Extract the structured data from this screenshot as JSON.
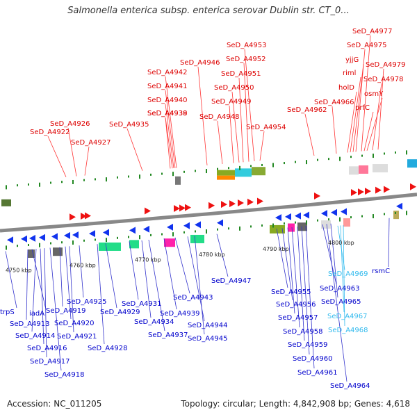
{
  "title": "Salmonella enterica subsp. enterica serovar Dublin str. CT_0...",
  "footer": {
    "accession": "Accession: NC_011205",
    "topology": "Topology: circular; Length: 4,842,908 bp; Genes: 4,618"
  },
  "colors": {
    "forward_label": "#dd0000",
    "reverse_label": "#0000cc",
    "rna_label": "#33bbee",
    "backbone": "#888888",
    "tick": "#228822"
  },
  "scale_labels": [
    "4750 kbp",
    "4760 kbp",
    "4770 kbp",
    "4780 kbp",
    "4790 kbp",
    "4800 kbp"
  ],
  "forward_genes": [
    "SeD_A4922",
    "SeD_A4926",
    "SeD_A4927",
    "SeD_A4935",
    "SeD_A4938",
    "SeD_A4939",
    "SeD_A4940",
    "SeD_A4941",
    "SeD_A4942",
    "SeD_A4946",
    "SeD_A4948",
    "SeD_A4949",
    "SeD_A4950",
    "SeD_A4951",
    "SeD_A4952",
    "SeD_A4953",
    "SeD_A4954",
    "SeD_A4962",
    "SeD_A4966",
    "holD",
    "riml",
    "yjjG",
    "SeD_A4975",
    "SeD_A4977",
    "prfC",
    "osmY",
    "SeD_A4978",
    "SeD_A4979"
  ],
  "reverse_genes": [
    "trpS",
    "iadA",
    "SeD_A4913",
    "SeD_A4914",
    "SeD_A4916",
    "SeD_A4917",
    "SeD_A4918",
    "SeD_A4919",
    "SeD_A4920",
    "SeD_A4921",
    "SeD_A4925",
    "SeD_A4928",
    "SeD_A4929",
    "SeD_A4931",
    "SeD_A4934",
    "SeD_A4937",
    "SeD_A4939",
    "SeD_A4943",
    "SeD_A4944",
    "SeD_A4945",
    "SeD_A4947",
    "SeD_A4955",
    "SeD_A4956",
    "SeD_A4957",
    "SeD_A4958",
    "SeD_A4959",
    "SeD_A4960",
    "SeD_A4961",
    "SeD_A4963",
    "SeD_A4964",
    "SeD_A4965",
    "rsmC"
  ],
  "rna_genes": [
    "SeD_A4967",
    "SeD_A4968",
    "SeD_A4969"
  ]
}
